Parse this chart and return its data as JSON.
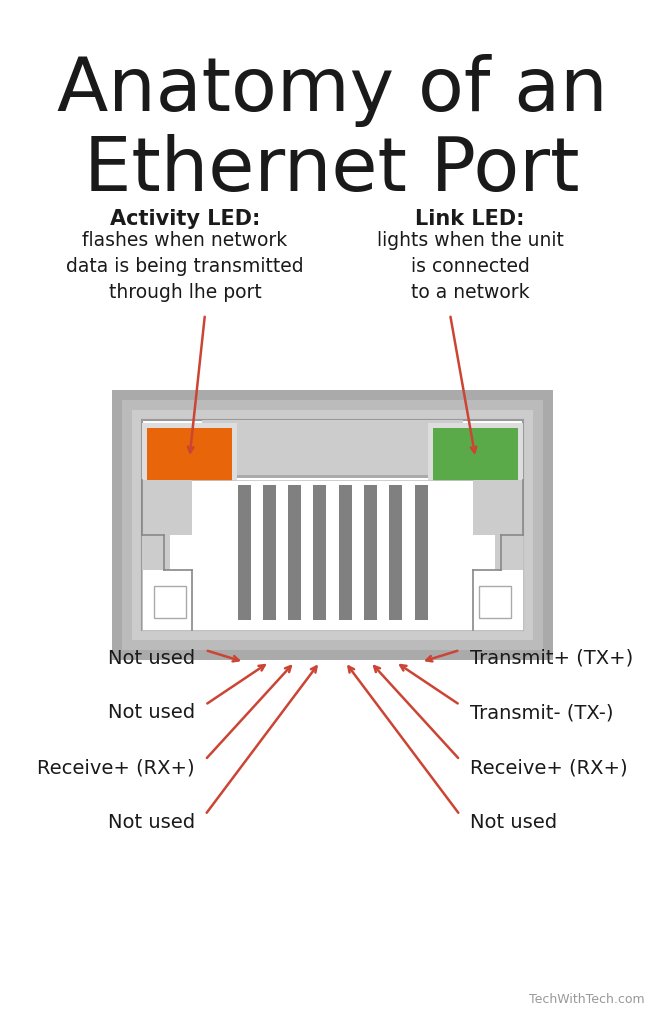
{
  "title_line1": "Anatomy of an",
  "title_line2": "Ethernet Port",
  "title_fontsize": 48,
  "bg_color": "#ffffff",
  "text_color": "#1a1a1a",
  "arrow_color": "#cc4433",
  "activity_led_color": "#e8650a",
  "link_led_color": "#5aaa4a",
  "outer_gray": "#aaaaaa",
  "mid_gray": "#bbbbbb",
  "light_gray": "#cccccc",
  "dark_gray": "#666666",
  "pin_gray": "#808080",
  "activity_label_bold": "Activity LED:",
  "activity_label_text": "flashes when network\ndata is being transmitted\nthrough lhe port",
  "link_label_bold": "Link LED:",
  "link_label_text": "lights when the unit\nis connected\nto a network",
  "pin_labels_left": [
    "Not used",
    "Not used",
    "Receive+ (RX+)",
    "Not used"
  ],
  "pin_labels_right": [
    "Transmit+ (TX+)",
    "Transmit- (TX-)",
    "Receive+ (RX+)",
    "Not used"
  ],
  "watermark": "TechWithTech.com"
}
